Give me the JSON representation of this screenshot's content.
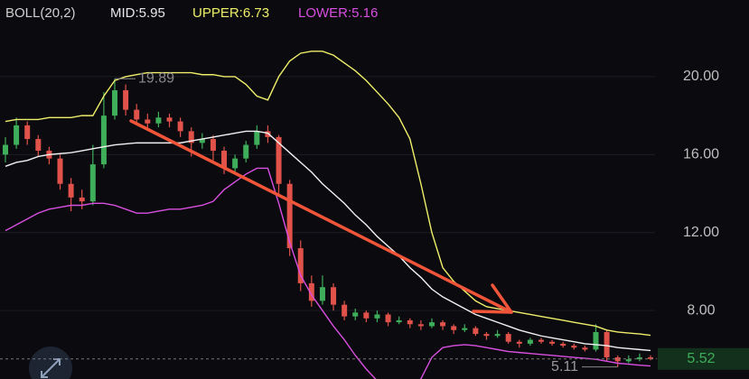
{
  "chart_data": {
    "type": "candlestick",
    "header": [
      "BOLL(20,2)",
      "MID:5.95",
      "UPPER:6.73",
      "LOWER:5.16"
    ],
    "ylim": [
      4.49,
      23.93
    ],
    "yticks": [
      {
        "value": 8,
        "label": "8.00"
      },
      {
        "value": 12,
        "label": "12.00"
      },
      {
        "value": 16,
        "label": "16.00"
      },
      {
        "value": 20,
        "label": "20.00"
      }
    ],
    "grid": true,
    "up_color": "#3fae5a",
    "down_color": "#e0524a",
    "ohlc": [
      [
        16.0,
        16.9,
        15.6,
        16.5
      ],
      [
        16.5,
        17.9,
        16.3,
        17.5
      ],
      [
        17.5,
        17.7,
        16.5,
        16.8
      ],
      [
        16.8,
        17.0,
        15.9,
        16.2
      ],
      [
        16.2,
        16.4,
        15.5,
        15.8
      ],
      [
        15.8,
        16.0,
        14.2,
        14.5
      ],
      [
        14.5,
        14.8,
        13.1,
        13.8
      ],
      [
        13.8,
        14.2,
        13.2,
        13.6
      ],
      [
        13.6,
        16.5,
        13.4,
        15.5
      ],
      [
        15.5,
        19.2,
        15.3,
        18.0
      ],
      [
        18.0,
        19.89,
        17.8,
        19.3
      ],
      [
        19.3,
        19.6,
        18.0,
        18.3
      ],
      [
        18.3,
        18.6,
        17.5,
        17.8
      ],
      [
        17.8,
        18.1,
        17.3,
        17.6
      ],
      [
        17.6,
        18.2,
        17.4,
        17.9
      ],
      [
        17.9,
        18.1,
        17.4,
        17.7
      ],
      [
        17.7,
        17.9,
        16.9,
        17.2
      ],
      [
        17.2,
        17.4,
        15.9,
        16.6
      ],
      [
        16.6,
        17.1,
        16.3,
        16.8
      ],
      [
        16.8,
        17.0,
        15.7,
        16.2
      ],
      [
        16.2,
        16.4,
        15.0,
        15.3
      ],
      [
        15.3,
        16.0,
        15.1,
        15.8
      ],
      [
        15.8,
        16.7,
        15.6,
        16.5
      ],
      [
        16.5,
        17.5,
        16.3,
        17.2
      ],
      [
        17.2,
        17.5,
        16.6,
        16.9
      ],
      [
        16.9,
        17.0,
        14.0,
        14.5
      ],
      [
        14.5,
        14.7,
        10.8,
        11.2
      ],
      [
        11.2,
        11.6,
        9.0,
        9.4
      ],
      [
        9.4,
        9.8,
        8.2,
        8.5
      ],
      [
        8.5,
        9.8,
        8.3,
        9.2
      ],
      [
        9.2,
        9.4,
        8.0,
        8.3
      ],
      [
        8.3,
        8.5,
        7.5,
        7.7
      ],
      [
        7.7,
        8.1,
        7.5,
        7.9
      ],
      [
        7.9,
        8.0,
        7.4,
        7.6
      ],
      [
        7.6,
        8.0,
        7.4,
        7.8
      ],
      [
        7.8,
        7.9,
        7.2,
        7.4
      ],
      [
        7.4,
        7.7,
        7.3,
        7.5
      ],
      [
        7.5,
        7.6,
        7.1,
        7.3
      ],
      [
        7.3,
        7.5,
        7.0,
        7.2
      ],
      [
        7.2,
        7.6,
        7.1,
        7.4
      ],
      [
        7.4,
        7.5,
        7.0,
        7.2
      ],
      [
        7.2,
        7.3,
        6.8,
        7.0
      ],
      [
        7.0,
        7.3,
        6.9,
        7.1
      ],
      [
        7.1,
        7.2,
        6.7,
        6.8
      ],
      [
        6.8,
        6.9,
        6.5,
        6.7
      ],
      [
        6.7,
        7.0,
        6.6,
        6.8
      ],
      [
        6.8,
        6.9,
        6.3,
        6.4
      ],
      [
        6.4,
        6.5,
        6.1,
        6.3
      ],
      [
        6.3,
        6.6,
        6.2,
        6.5
      ],
      [
        6.5,
        6.6,
        6.3,
        6.4
      ],
      [
        6.4,
        6.5,
        6.2,
        6.3
      ],
      [
        6.3,
        6.4,
        6.1,
        6.2
      ],
      [
        6.2,
        6.3,
        6.0,
        6.1
      ],
      [
        6.1,
        6.2,
        5.9,
        6.0
      ],
      [
        6.0,
        7.3,
        5.9,
        6.9
      ],
      [
        6.9,
        7.0,
        5.4,
        5.6
      ],
      [
        5.6,
        5.7,
        5.11,
        5.4
      ],
      [
        5.4,
        5.7,
        5.3,
        5.5
      ],
      [
        5.5,
        5.8,
        5.4,
        5.6
      ],
      [
        5.6,
        5.7,
        5.45,
        5.52
      ]
    ],
    "series": [
      {
        "name": "MID",
        "color": "#f2f2f2",
        "values": [
          15.4,
          15.6,
          15.7,
          15.9,
          16.0,
          16.05,
          16.1,
          16.2,
          16.3,
          16.4,
          16.5,
          16.55,
          16.6,
          16.6,
          16.6,
          16.6,
          16.6,
          16.7,
          16.8,
          16.9,
          17.0,
          17.1,
          17.2,
          17.2,
          17.1,
          16.6,
          16.1,
          15.6,
          15.1,
          14.5,
          14.0,
          13.5,
          12.9,
          12.4,
          11.8,
          11.3,
          10.8,
          10.2,
          9.7,
          9.1,
          8.7,
          8.4,
          8.1,
          7.8,
          7.6,
          7.4,
          7.2,
          7.0,
          6.85,
          6.7,
          6.6,
          6.5,
          6.4,
          6.3,
          6.25,
          6.2,
          6.1,
          6.05,
          6.0,
          5.95
        ]
      },
      {
        "name": "UPPER",
        "color": "#f0ee6a",
        "values": [
          17.7,
          17.8,
          17.8,
          17.8,
          17.9,
          17.9,
          17.9,
          18.0,
          18.0,
          19.0,
          19.8,
          20.0,
          20.1,
          20.2,
          20.2,
          20.2,
          20.2,
          20.2,
          20.1,
          20.1,
          20.0,
          20.0,
          19.6,
          19.0,
          18.8,
          20.0,
          20.8,
          21.2,
          21.3,
          21.3,
          21.1,
          20.7,
          20.3,
          19.8,
          19.2,
          18.6,
          17.9,
          16.8,
          14.5,
          12.0,
          10.2,
          9.5,
          9.0,
          8.5,
          8.2,
          8.1,
          8.0,
          7.9,
          7.8,
          7.7,
          7.6,
          7.5,
          7.4,
          7.3,
          7.2,
          7.0,
          6.9,
          6.85,
          6.8,
          6.73
        ]
      },
      {
        "name": "LOWER",
        "color": "#d94fe0",
        "values": [
          12.1,
          12.4,
          12.7,
          13.0,
          13.2,
          13.3,
          13.4,
          13.4,
          13.5,
          13.5,
          13.4,
          13.2,
          13.0,
          13.0,
          13.1,
          13.2,
          13.2,
          13.3,
          13.4,
          13.6,
          14.2,
          14.6,
          15.0,
          15.3,
          15.3,
          13.5,
          11.5,
          9.8,
          8.8,
          8.0,
          7.2,
          6.5,
          5.7,
          5.0,
          4.4,
          4.0,
          3.8,
          4.0,
          4.5,
          5.6,
          6.1,
          6.2,
          6.25,
          6.2,
          6.1,
          6.0,
          5.9,
          5.85,
          5.8,
          5.75,
          5.7,
          5.65,
          5.6,
          5.55,
          5.5,
          5.4,
          5.3,
          5.25,
          5.2,
          5.16
        ]
      }
    ],
    "high_marker": 19.89,
    "low_marker": 5.11,
    "last_price": 5.52,
    "last_color": "#3fae5a"
  }
}
